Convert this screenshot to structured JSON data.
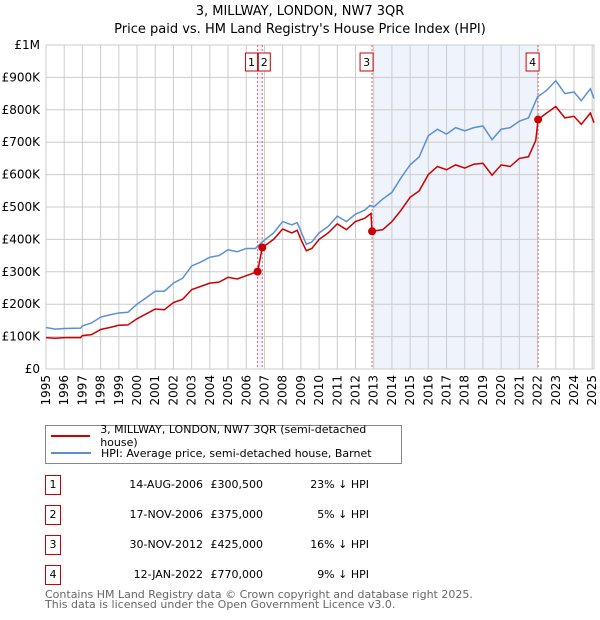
{
  "title": "3, MILLWAY, LONDON, NW7 3QR",
  "subtitle": "Price paid vs. HM Land Registry's House Price Index (HPI)",
  "chart_data": {
    "type": "line",
    "xlim": [
      1995,
      2025.1
    ],
    "ylim": [
      0,
      1000000
    ],
    "yticks": [
      {
        "v": 0,
        "l": "£0"
      },
      {
        "v": 100000,
        "l": "£100K"
      },
      {
        "v": 200000,
        "l": "£200K"
      },
      {
        "v": 300000,
        "l": "£300K"
      },
      {
        "v": 400000,
        "l": "£400K"
      },
      {
        "v": 500000,
        "l": "£500K"
      },
      {
        "v": 600000,
        "l": "£600K"
      },
      {
        "v": 700000,
        "l": "£700K"
      },
      {
        "v": 800000,
        "l": "£800K"
      },
      {
        "v": 900000,
        "l": "£900K"
      },
      {
        "v": 1000000,
        "l": "£1M"
      }
    ],
    "xticks": [
      "1995",
      "1996",
      "1997",
      "1998",
      "1999",
      "2000",
      "2001",
      "2002",
      "2003",
      "2004",
      "2005",
      "2006",
      "2007",
      "2008",
      "2009",
      "2010",
      "2011",
      "2012",
      "2013",
      "2014",
      "2015",
      "2016",
      "2017",
      "2018",
      "2019",
      "2020",
      "2021",
      "2022",
      "2023",
      "2024",
      "2025"
    ],
    "grid": true,
    "series": [
      {
        "name": "3, MILLWAY, LONDON, NW7 3QR (semi-detached house)",
        "color": "#cc0000",
        "points": [
          [
            1995,
            97
          ],
          [
            1995.5,
            95
          ],
          [
            1996,
            97
          ],
          [
            1996.9,
            97
          ],
          [
            1997,
            103
          ],
          [
            1997.5,
            106
          ],
          [
            1998,
            122
          ],
          [
            1998.5,
            128
          ],
          [
            1999,
            135
          ],
          [
            1999.5,
            136
          ],
          [
            2000,
            155
          ],
          [
            2000.5,
            170
          ],
          [
            2001,
            185
          ],
          [
            2001.5,
            183
          ],
          [
            2002,
            205
          ],
          [
            2002.5,
            215
          ],
          [
            2003,
            245
          ],
          [
            2003.5,
            255
          ],
          [
            2004,
            265
          ],
          [
            2004.5,
            268
          ],
          [
            2005,
            283
          ],
          [
            2005.5,
            278
          ],
          [
            2006,
            288
          ],
          [
            2006.62,
            300.5
          ],
          [
            2006.88,
            375
          ],
          [
            2007.5,
            400
          ],
          [
            2008,
            432
          ],
          [
            2008.5,
            420
          ],
          [
            2008.8,
            428
          ],
          [
            2009,
            400
          ],
          [
            2009.3,
            365
          ],
          [
            2009.6,
            372
          ],
          [
            2010,
            400
          ],
          [
            2010.5,
            420
          ],
          [
            2011,
            448
          ],
          [
            2011.5,
            430
          ],
          [
            2012,
            455
          ],
          [
            2012.5,
            465
          ],
          [
            2012.85,
            480
          ],
          [
            2012.91,
            425
          ],
          [
            2013.5,
            430
          ],
          [
            2014,
            455
          ],
          [
            2014.5,
            490
          ],
          [
            2015,
            530
          ],
          [
            2015.5,
            550
          ],
          [
            2016,
            600
          ],
          [
            2016.5,
            625
          ],
          [
            2017,
            615
          ],
          [
            2017.5,
            630
          ],
          [
            2018,
            620
          ],
          [
            2018.5,
            632
          ],
          [
            2019,
            635
          ],
          [
            2019.5,
            598
          ],
          [
            2020,
            630
          ],
          [
            2020.5,
            625
          ],
          [
            2021,
            650
          ],
          [
            2021.5,
            655
          ],
          [
            2021.9,
            705
          ],
          [
            2022.03,
            770
          ],
          [
            2022.5,
            790
          ],
          [
            2023,
            810
          ],
          [
            2023.5,
            775
          ],
          [
            2024,
            780
          ],
          [
            2024.4,
            755
          ],
          [
            2024.9,
            790
          ],
          [
            2025.1,
            760
          ]
        ]
      },
      {
        "name": "HPI: Average price, semi-detached house, Barnet",
        "color": "#5b8fd4",
        "points": [
          [
            1995,
            128
          ],
          [
            1995.5,
            123
          ],
          [
            1996,
            125
          ],
          [
            1996.9,
            126
          ],
          [
            1997,
            133
          ],
          [
            1997.5,
            142
          ],
          [
            1998,
            160
          ],
          [
            1998.5,
            167
          ],
          [
            1999,
            173
          ],
          [
            1999.5,
            175
          ],
          [
            2000,
            200
          ],
          [
            2000.5,
            220
          ],
          [
            2001,
            240
          ],
          [
            2001.5,
            240
          ],
          [
            2002,
            265
          ],
          [
            2002.5,
            280
          ],
          [
            2003,
            318
          ],
          [
            2003.5,
            330
          ],
          [
            2004,
            345
          ],
          [
            2004.5,
            350
          ],
          [
            2005,
            368
          ],
          [
            2005.5,
            362
          ],
          [
            2006,
            372
          ],
          [
            2006.5,
            372
          ],
          [
            2007,
            398
          ],
          [
            2007.5,
            420
          ],
          [
            2008,
            455
          ],
          [
            2008.5,
            445
          ],
          [
            2008.8,
            452
          ],
          [
            2009,
            425
          ],
          [
            2009.3,
            385
          ],
          [
            2009.6,
            392
          ],
          [
            2010,
            420
          ],
          [
            2010.5,
            440
          ],
          [
            2011,
            472
          ],
          [
            2011.5,
            455
          ],
          [
            2012,
            478
          ],
          [
            2012.5,
            490
          ],
          [
            2012.8,
            505
          ],
          [
            2013,
            500
          ],
          [
            2013.5,
            525
          ],
          [
            2014,
            545
          ],
          [
            2014.5,
            590
          ],
          [
            2015,
            630
          ],
          [
            2015.5,
            655
          ],
          [
            2016,
            720
          ],
          [
            2016.5,
            740
          ],
          [
            2017,
            725
          ],
          [
            2017.5,
            745
          ],
          [
            2018,
            735
          ],
          [
            2018.5,
            745
          ],
          [
            2019,
            750
          ],
          [
            2019.5,
            708
          ],
          [
            2020,
            740
          ],
          [
            2020.5,
            745
          ],
          [
            2021,
            765
          ],
          [
            2021.5,
            775
          ],
          [
            2022,
            840
          ],
          [
            2022.5,
            860
          ],
          [
            2023,
            890
          ],
          [
            2023.5,
            850
          ],
          [
            2024,
            855
          ],
          [
            2024.4,
            828
          ],
          [
            2024.9,
            865
          ],
          [
            2025.1,
            835
          ]
        ]
      }
    ],
    "sales": [
      {
        "n": "1",
        "x": 2006.62,
        "y": 300.5
      },
      {
        "n": "2",
        "x": 2006.88,
        "y": 375
      },
      {
        "n": "3",
        "x": 2012.91,
        "y": 425
      },
      {
        "n": "4",
        "x": 2022.03,
        "y": 770
      }
    ],
    "shaded": [
      [
        2006.62,
        2006.88
      ],
      [
        2012.91,
        2022.03
      ]
    ]
  },
  "legend": [
    "3, MILLWAY, LONDON, NW7 3QR (semi-detached house)",
    "HPI: Average price, semi-detached house, Barnet"
  ],
  "table": [
    {
      "n": "1",
      "date": "14-AUG-2006",
      "price": "£300,500",
      "hpi": "23% ↓ HPI"
    },
    {
      "n": "2",
      "date": "17-NOV-2006",
      "price": "£375,000",
      "hpi": "5% ↓ HPI"
    },
    {
      "n": "3",
      "date": "30-NOV-2012",
      "price": "£425,000",
      "hpi": "16% ↓ HPI"
    },
    {
      "n": "4",
      "date": "12-JAN-2022",
      "price": "£770,000",
      "hpi": "9% ↓ HPI"
    }
  ],
  "footer": [
    "Contains HM Land Registry data © Crown copyright and database right 2025.",
    "This data is licensed under the Open Government Licence v3.0."
  ]
}
